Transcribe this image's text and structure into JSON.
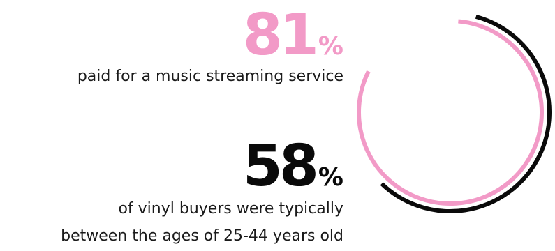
{
  "chart_data": {
    "type": "radial",
    "stats": [
      {
        "value": 81,
        "number": "81",
        "unit": "%",
        "caption_lines": [
          "paid for a music streaming service"
        ]
      },
      {
        "value": 58,
        "number": "58",
        "unit": "%",
        "caption_lines": [
          "of vinyl buyers were typically",
          "between the ages of 25-44 years old"
        ]
      }
    ]
  },
  "colors": {
    "pink": "#f29ac7",
    "black": "#0a0a0a",
    "background": "#ffffff"
  }
}
